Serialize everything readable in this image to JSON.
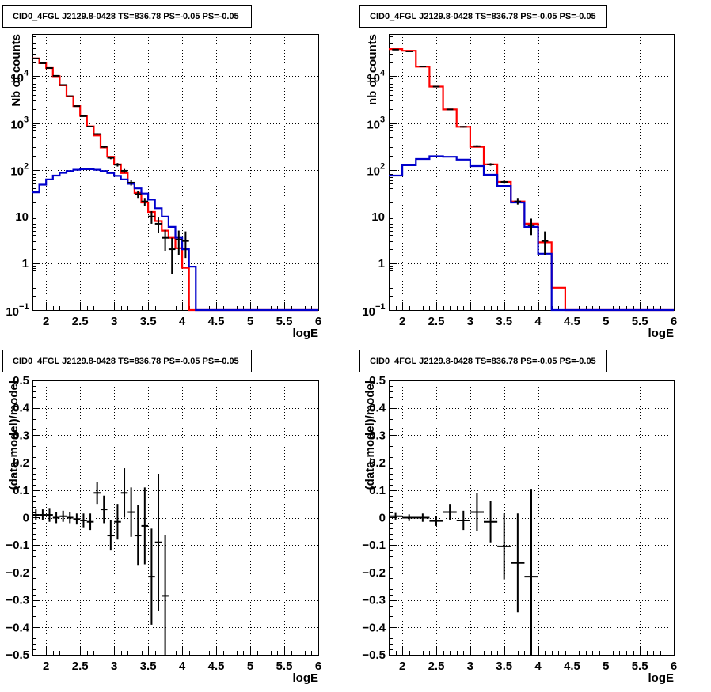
{
  "colors": {
    "data": "#000000",
    "total_model": "#ff0000",
    "source_model": "#0000cc",
    "grid": "#000000"
  },
  "chart_data": [
    {
      "type": "line",
      "title": "CID0_4FGL J2129.8-0428 TS=836.78 PS=-0.05 PS=-0.05",
      "xlabel": "logE",
      "ylabel": "Nb of counts",
      "xlim": [
        1.8,
        6
      ],
      "ylim": [
        0.1,
        80000
      ],
      "yscale": "log",
      "grid": true,
      "x_ticks": [
        "2",
        "2.5",
        "3",
        "3.5",
        "4",
        "4.5",
        "5",
        "5.5",
        "6"
      ],
      "y_ticks": [
        {
          "v": 0.1,
          "m": "10",
          "e": "−1"
        },
        {
          "v": 1,
          "m": "1",
          "e": ""
        },
        {
          "v": 10,
          "m": "10",
          "e": ""
        },
        {
          "v": 100,
          "m": "10",
          "e": "2"
        },
        {
          "v": 1000,
          "m": "10",
          "e": "3"
        },
        {
          "v": 10000,
          "m": "10",
          "e": "4"
        }
      ],
      "bin_edges": [
        1.8,
        1.9,
        2.0,
        2.1,
        2.2,
        2.3,
        2.4,
        2.5,
        2.6,
        2.7,
        2.8,
        2.9,
        3.0,
        3.1,
        3.2,
        3.3,
        3.4,
        3.5,
        3.6,
        3.7,
        3.8,
        3.9,
        4.0,
        4.1,
        4.2,
        4.3,
        4.4,
        4.5,
        4.6,
        4.7,
        4.8,
        4.9,
        5.0,
        5.1,
        5.2,
        5.3,
        5.4,
        5.5,
        5.6,
        5.7,
        5.8,
        5.9,
        6.0
      ],
      "series": [
        {
          "role": "total_model",
          "values": [
            24000,
            19000,
            15000,
            10000,
            6400,
            3700,
            2300,
            1420,
            850,
            540,
            300,
            190,
            130,
            85,
            52,
            32,
            20,
            12.5,
            8,
            5,
            3.5,
            2.1,
            0.8,
            0.1,
            0.08,
            0.08,
            0.08,
            0.08,
            0.08,
            0.08,
            0.08,
            0.08,
            0.08,
            0.08,
            0.08,
            0.08,
            0.08,
            0.08,
            0.08,
            0.08,
            0.08,
            0.08
          ]
        },
        {
          "role": "source_model",
          "values": [
            33,
            48,
            62,
            75,
            86,
            94,
            100,
            103,
            103,
            100,
            94,
            85,
            74,
            62,
            50,
            40,
            31,
            23,
            15,
            10,
            6,
            3.5,
            2,
            0.85,
            0.1,
            0.1,
            0.1,
            0.1,
            0.1,
            0.1,
            0.1,
            0.1,
            0.1,
            0.1,
            0.1,
            0.1,
            0.1,
            0.1,
            0.1,
            0.1,
            0.1,
            0.1
          ]
        }
      ],
      "points": [
        {
          "x": 1.85,
          "y": 24000,
          "ylo": 23600,
          "yhi": 24400
        },
        {
          "x": 1.95,
          "y": 19000,
          "ylo": 18700,
          "yhi": 19300
        },
        {
          "x": 2.05,
          "y": 15000,
          "ylo": 14700,
          "yhi": 15300
        },
        {
          "x": 2.15,
          "y": 10200,
          "ylo": 10000,
          "yhi": 10400
        },
        {
          "x": 2.25,
          "y": 6500,
          "ylo": 6350,
          "yhi": 6650
        },
        {
          "x": 2.35,
          "y": 3750,
          "ylo": 3650,
          "yhi": 3850
        },
        {
          "x": 2.45,
          "y": 2300,
          "ylo": 2250,
          "yhi": 2350
        },
        {
          "x": 2.55,
          "y": 1400,
          "ylo": 1360,
          "yhi": 1440
        },
        {
          "x": 2.65,
          "y": 840,
          "ylo": 810,
          "yhi": 870
        },
        {
          "x": 2.75,
          "y": 580,
          "ylo": 555,
          "yhi": 605
        },
        {
          "x": 2.85,
          "y": 310,
          "ylo": 295,
          "yhi": 325
        },
        {
          "x": 2.95,
          "y": 180,
          "ylo": 168,
          "yhi": 192
        },
        {
          "x": 3.05,
          "y": 128,
          "ylo": 117,
          "yhi": 139
        },
        {
          "x": 3.15,
          "y": 95,
          "ylo": 86,
          "yhi": 104
        },
        {
          "x": 3.25,
          "y": 53,
          "ylo": 46,
          "yhi": 60
        },
        {
          "x": 3.35,
          "y": 30,
          "ylo": 25,
          "yhi": 35
        },
        {
          "x": 3.45,
          "y": 21,
          "ylo": 17,
          "yhi": 25
        },
        {
          "x": 3.55,
          "y": 10,
          "ylo": 7,
          "yhi": 13
        },
        {
          "x": 3.65,
          "y": 7,
          "ylo": 4.5,
          "yhi": 9.5
        },
        {
          "x": 3.75,
          "y": 3.5,
          "ylo": 1.8,
          "yhi": 5.2
        },
        {
          "x": 3.85,
          "y": 2,
          "ylo": 0.6,
          "yhi": 3.5
        },
        {
          "x": 3.95,
          "y": 3.2,
          "ylo": 1.5,
          "yhi": 5
        },
        {
          "x": 4.05,
          "y": 3,
          "ylo": 1.3,
          "yhi": 4.8
        }
      ]
    },
    {
      "type": "line",
      "title": "CID0_4FGL J2129.8-0428 TS=836.78 PS=-0.05 PS=-0.05",
      "xlabel": "logE",
      "ylabel": "nb of counts",
      "xlim": [
        1.8,
        6
      ],
      "ylim": [
        0.1,
        80000
      ],
      "yscale": "log",
      "grid": true,
      "x_ticks": [
        "2",
        "2.5",
        "3",
        "3.5",
        "4",
        "4.5",
        "5",
        "5.5",
        "6"
      ],
      "y_ticks": [
        {
          "v": 0.1,
          "m": "10",
          "e": "−1"
        },
        {
          "v": 1,
          "m": "1",
          "e": ""
        },
        {
          "v": 10,
          "m": "10",
          "e": ""
        },
        {
          "v": 100,
          "m": "10",
          "e": "2"
        },
        {
          "v": 1000,
          "m": "10",
          "e": "3"
        },
        {
          "v": 10000,
          "m": "10",
          "e": "4"
        }
      ],
      "bin_edges": [
        1.8,
        2.0,
        2.2,
        2.4,
        2.6,
        2.8,
        3.0,
        3.2,
        3.4,
        3.6,
        3.8,
        4.0,
        4.2,
        4.4,
        4.6,
        4.8,
        5.0,
        5.2,
        5.4,
        5.6,
        5.8,
        6.0
      ],
      "series": [
        {
          "role": "total_model",
          "values": [
            38000,
            35000,
            16000,
            6000,
            1950,
            830,
            310,
            130,
            55,
            21,
            7,
            2.8,
            0.3,
            0.1,
            0.1,
            0.1,
            0.1,
            0.1,
            0.1,
            0.1,
            0.1
          ]
        },
        {
          "role": "source_model",
          "values": [
            75,
            125,
            170,
            195,
            190,
            165,
            120,
            78,
            45,
            20,
            6,
            1.6,
            0.1,
            0.1,
            0.1,
            0.1,
            0.1,
            0.1,
            0.1,
            0.1,
            0.1
          ]
        }
      ],
      "points": [
        {
          "x": 1.9,
          "y": 37000,
          "ylo": 36500,
          "yhi": 37500
        },
        {
          "x": 2.1,
          "y": 34000,
          "ylo": 33500,
          "yhi": 34500
        },
        {
          "x": 2.3,
          "y": 16200,
          "ylo": 15900,
          "yhi": 16500
        },
        {
          "x": 2.5,
          "y": 6000,
          "ylo": 5850,
          "yhi": 6150
        },
        {
          "x": 2.7,
          "y": 1950,
          "ylo": 1900,
          "yhi": 2000
        },
        {
          "x": 2.9,
          "y": 830,
          "ylo": 800,
          "yhi": 860
        },
        {
          "x": 3.1,
          "y": 320,
          "ylo": 305,
          "yhi": 335
        },
        {
          "x": 3.3,
          "y": 130,
          "ylo": 122,
          "yhi": 138
        },
        {
          "x": 3.5,
          "y": 55,
          "ylo": 50,
          "yhi": 60
        },
        {
          "x": 3.7,
          "y": 21,
          "ylo": 18,
          "yhi": 25
        },
        {
          "x": 3.9,
          "y": 6.5,
          "ylo": 4,
          "yhi": 9
        },
        {
          "x": 4.1,
          "y": 3,
          "ylo": 1.5,
          "yhi": 4.8
        }
      ]
    },
    {
      "type": "scatter",
      "title": "CID0_4FGL J2129.8-0428 TS=836.78 PS=-0.05 PS=-0.05",
      "xlabel": "logE",
      "ylabel": "(data-model)/model",
      "xlim": [
        1.8,
        6
      ],
      "ylim": [
        -0.5,
        0.5
      ],
      "grid": true,
      "x_ticks": [
        "2",
        "2.5",
        "3",
        "3.5",
        "4",
        "4.5",
        "5",
        "5.5",
        "6"
      ],
      "y_ticks": [
        "−0.5",
        "−0.4",
        "−0.3",
        "−0.2",
        "−0.1",
        "0",
        "0.1",
        "0.2",
        "0.3",
        "0.4",
        "0.5"
      ],
      "points": [
        {
          "x": 1.85,
          "y": 0.01,
          "err": 0.02,
          "xerr": 0.05
        },
        {
          "x": 1.95,
          "y": 0.01,
          "err": 0.02,
          "xerr": 0.05
        },
        {
          "x": 2.05,
          "y": 0.01,
          "err": 0.025,
          "xerr": 0.05
        },
        {
          "x": 2.15,
          "y": 0.0,
          "err": 0.02,
          "xerr": 0.05
        },
        {
          "x": 2.25,
          "y": 0.005,
          "err": 0.02,
          "xerr": 0.05
        },
        {
          "x": 2.35,
          "y": 0.0,
          "err": 0.02,
          "xerr": 0.05
        },
        {
          "x": 2.45,
          "y": -0.005,
          "err": 0.02,
          "xerr": 0.05
        },
        {
          "x": 2.55,
          "y": -0.01,
          "err": 0.025,
          "xerr": 0.05
        },
        {
          "x": 2.65,
          "y": -0.015,
          "err": 0.03,
          "xerr": 0.05
        },
        {
          "x": 2.75,
          "y": 0.09,
          "err": 0.04,
          "xerr": 0.05
        },
        {
          "x": 2.85,
          "y": 0.03,
          "err": 0.05,
          "xerr": 0.05
        },
        {
          "x": 2.95,
          "y": -0.065,
          "err": 0.055,
          "xerr": 0.05
        },
        {
          "x": 3.05,
          "y": -0.015,
          "err": 0.065,
          "xerr": 0.05
        },
        {
          "x": 3.15,
          "y": 0.09,
          "err": 0.09,
          "xerr": 0.05
        },
        {
          "x": 3.25,
          "y": 0.02,
          "err": 0.09,
          "xerr": 0.05
        },
        {
          "x": 3.35,
          "y": -0.065,
          "err": 0.11,
          "xerr": 0.05
        },
        {
          "x": 3.45,
          "y": -0.03,
          "err": 0.14,
          "xerr": 0.05
        },
        {
          "x": 3.55,
          "y": -0.215,
          "err": 0.175,
          "xerr": 0.05
        },
        {
          "x": 3.65,
          "y": -0.09,
          "err": 0.25,
          "xerr": 0.05
        },
        {
          "x": 3.75,
          "y": -0.285,
          "err": 0.22,
          "xerr": 0.05
        }
      ]
    },
    {
      "type": "scatter",
      "title": "CID0_4FGL J2129.8-0428 TS=836.78 PS=-0.05 PS=-0.05",
      "xlabel": "logE",
      "ylabel": "(data-model)/model",
      "xlim": [
        1.8,
        6
      ],
      "ylim": [
        -0.5,
        0.5
      ],
      "grid": true,
      "x_ticks": [
        "2",
        "2.5",
        "3",
        "3.5",
        "4",
        "4.5",
        "5",
        "5.5",
        "6"
      ],
      "y_ticks": [
        "−0.5",
        "−0.4",
        "−0.3",
        "−0.2",
        "−0.1",
        "0",
        "0.1",
        "0.2",
        "0.3",
        "0.4",
        "0.5"
      ],
      "points": [
        {
          "x": 1.9,
          "y": 0.005,
          "err": 0.012,
          "xerr": 0.1
        },
        {
          "x": 2.1,
          "y": 0.0,
          "err": 0.012,
          "xerr": 0.1
        },
        {
          "x": 2.3,
          "y": 0.0,
          "err": 0.015,
          "xerr": 0.1
        },
        {
          "x": 2.5,
          "y": -0.012,
          "err": 0.018,
          "xerr": 0.1
        },
        {
          "x": 2.7,
          "y": 0.02,
          "err": 0.03,
          "xerr": 0.1
        },
        {
          "x": 2.9,
          "y": -0.01,
          "err": 0.035,
          "xerr": 0.1
        },
        {
          "x": 3.1,
          "y": 0.02,
          "err": 0.07,
          "xerr": 0.1
        },
        {
          "x": 3.3,
          "y": -0.015,
          "err": 0.075,
          "xerr": 0.1
        },
        {
          "x": 3.5,
          "y": -0.105,
          "err": 0.12,
          "xerr": 0.1
        },
        {
          "x": 3.7,
          "y": -0.165,
          "err": 0.18,
          "xerr": 0.1
        },
        {
          "x": 3.9,
          "y": -0.215,
          "err": 0.32,
          "xerr": 0.1
        }
      ]
    }
  ]
}
